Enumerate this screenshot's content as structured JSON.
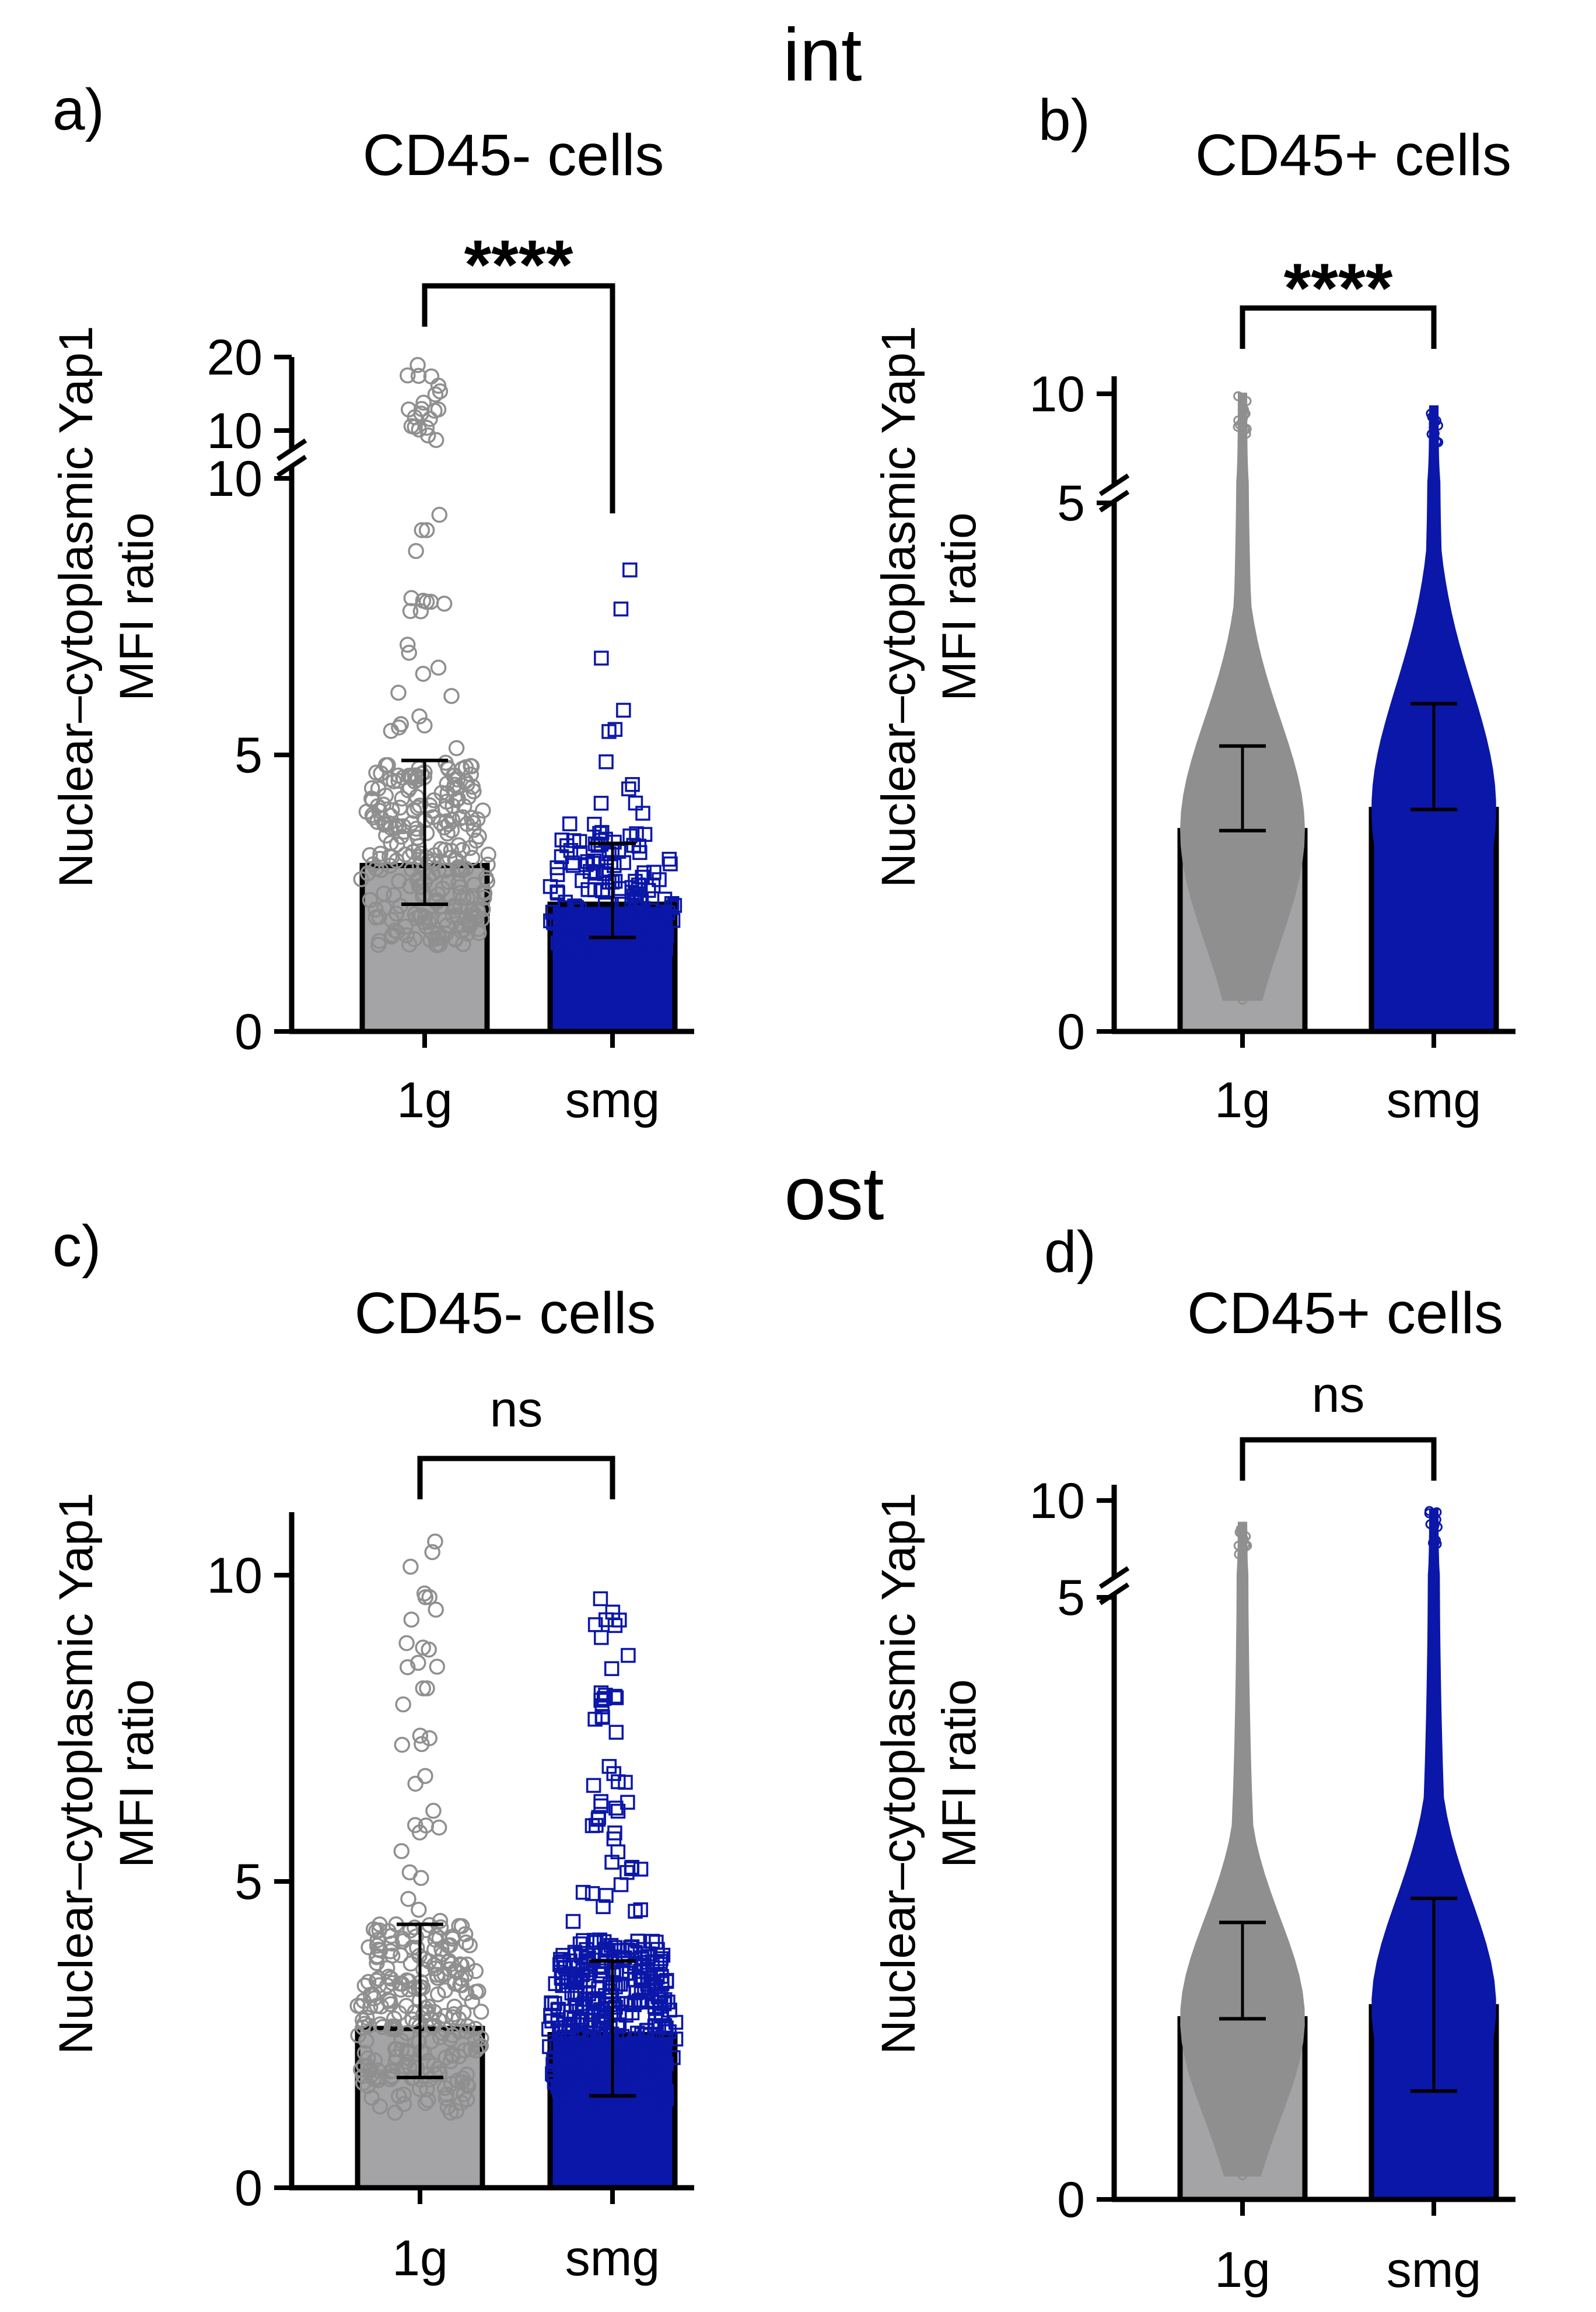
{
  "figure": {
    "section_labels": [
      "int",
      "ost"
    ],
    "colors": {
      "g1": "#8f8f8f",
      "smg": "#0b17a8",
      "axis": "#000000"
    }
  },
  "chart_data": [
    {
      "panel": "a)",
      "section": "int",
      "type": "bar",
      "title": "CD45- cells",
      "ylabel": "Nuclear–cytoplasmic Yap1\nMFI ratio",
      "xlabel": "",
      "categories": [
        "1g",
        "smg"
      ],
      "values": [
        3.0,
        2.3
      ],
      "errors": [
        [
          2.3,
          4.9
        ],
        [
          1.7,
          3.4
        ]
      ],
      "significance": "****",
      "y_break": {
        "lower": [
          0,
          10
        ],
        "upper": [
          10,
          20
        ]
      },
      "yticks": [
        0,
        5,
        10
      ],
      "yticks_upper": [
        10,
        20
      ],
      "points": "individual",
      "point_ranges": [
        [
          0.6,
          19.5
        ],
        [
          0.8,
          8.6
        ]
      ],
      "n_points": [
        300,
        160
      ]
    },
    {
      "panel": "b)",
      "section": "int",
      "type": "bar",
      "title": "CD45+ cells",
      "ylabel": "Nuclear–cytoplasmic Yap1\nMFI ratio",
      "xlabel": "",
      "categories": [
        "1g",
        "smg"
      ],
      "values": [
        1.9,
        2.1
      ],
      "errors": [
        [
          1.9,
          2.7
        ],
        [
          2.1,
          3.1
        ]
      ],
      "significance": "****",
      "y_break": {
        "lower": [
          0,
          5
        ],
        "upper": [
          5,
          10
        ]
      },
      "yticks": [
        0,
        5
      ],
      "yticks_upper": [
        10
      ],
      "points": "dense",
      "point_ranges": [
        [
          0.3,
          10.0
        ],
        [
          0.4,
          9.3
        ]
      ]
    },
    {
      "panel": "c)",
      "section": "ost",
      "type": "bar",
      "title": "CD45- cells",
      "ylabel": "Nuclear–cytoplasmic Yap1\nMFI ratio",
      "xlabel": "",
      "categories": [
        "1g",
        "smg"
      ],
      "values": [
        2.6,
        2.5
      ],
      "errors": [
        [
          1.8,
          4.3
        ],
        [
          1.5,
          3.7
        ]
      ],
      "significance": "ns",
      "yticks": [
        0,
        5,
        10
      ],
      "ylim": [
        0,
        11
      ],
      "points": "individual",
      "point_ranges": [
        [
          0.3,
          10.6
        ],
        [
          0.5,
          9.8
        ]
      ],
      "n_points": [
        280,
        420
      ]
    },
    {
      "panel": "d)",
      "section": "ost",
      "type": "bar",
      "title": "CD45+ cells",
      "ylabel": "Nuclear–cytoplasmic Yap1\nMFI ratio",
      "xlabel": "",
      "categories": [
        "1g",
        "smg"
      ],
      "values": [
        1.5,
        1.6
      ],
      "errors": [
        [
          1.5,
          2.3
        ],
        [
          0.9,
          2.5
        ]
      ],
      "significance": "ns",
      "y_break": {
        "lower": [
          0,
          5
        ],
        "upper": [
          5,
          10
        ]
      },
      "yticks": [
        0,
        5
      ],
      "yticks_upper": [
        10
      ],
      "points": "dense",
      "point_ranges": [
        [
          0.2,
          8.5
        ],
        [
          0.3,
          9.4
        ]
      ]
    }
  ]
}
